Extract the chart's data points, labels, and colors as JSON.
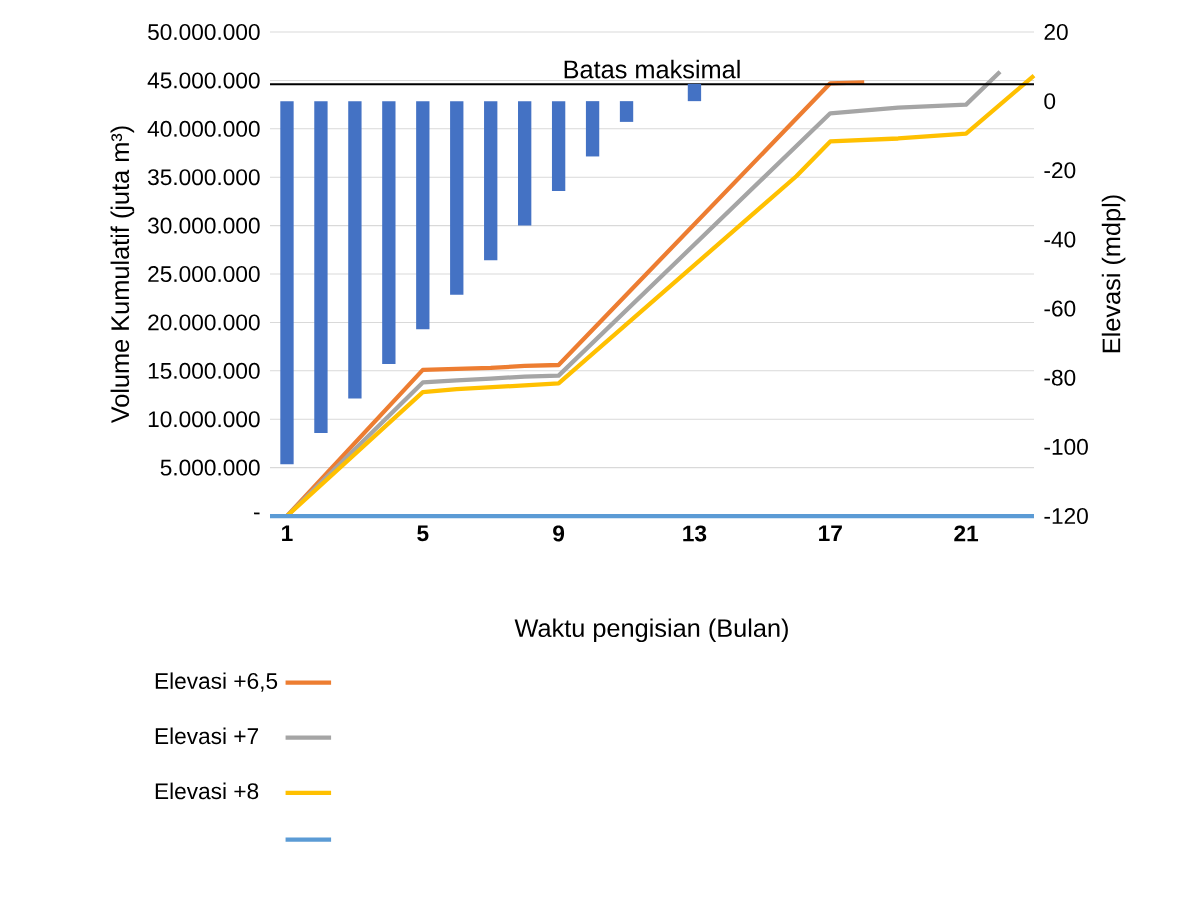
{
  "chart_data": {
    "type": "line",
    "xlabel": "Waktu pengisian (Bulan)",
    "ylabel": "Volume Kumulatif (juta m³)",
    "y2label": "Elevasi (mdpl)",
    "xlim": [
      0.5,
      23
    ],
    "xticks": [
      1,
      5,
      9,
      13,
      17,
      21
    ],
    "ylim": [
      0,
      50000000
    ],
    "yticks": [
      {
        "value": 0,
        "label": "-"
      },
      {
        "value": 5000000,
        "label": "5.000.000"
      },
      {
        "value": 10000000,
        "label": "10.000.000"
      },
      {
        "value": 15000000,
        "label": "15.000.000"
      },
      {
        "value": 20000000,
        "label": "20.000.000"
      },
      {
        "value": 25000000,
        "label": "25.000.000"
      },
      {
        "value": 30000000,
        "label": "30.000.000"
      },
      {
        "value": 35000000,
        "label": "35.000.000"
      },
      {
        "value": 40000000,
        "label": "40.000.000"
      },
      {
        "value": 45000000,
        "label": "45.000.000"
      },
      {
        "value": 50000000,
        "label": "50.000.000"
      }
    ],
    "y2lim": [
      -120,
      20
    ],
    "y2ticks": [
      20,
      0,
      -20,
      -40,
      -60,
      -80,
      -100,
      -120
    ],
    "grid": "y",
    "legend": "bottom",
    "ref_lines": [
      {
        "axis": "y",
        "value": 44600000,
        "label": "Batas maksimal",
        "color": "#000000"
      }
    ],
    "series": [
      {
        "type": "bar",
        "axis": "y2",
        "color": "#4472c4",
        "x": [
          1,
          2,
          3,
          4,
          5,
          6,
          7,
          8,
          9,
          10,
          11,
          12,
          13
        ],
        "values": [
          -105,
          -96,
          -86,
          -76,
          -66,
          -56,
          -46,
          -36,
          -26,
          -16,
          -6,
          null,
          5
        ]
      },
      {
        "name": "Elevasi +6,5",
        "color": "#ed7d31",
        "x": [
          1,
          5,
          6,
          7,
          8,
          9,
          17,
          18
        ],
        "values": [
          0,
          15100000,
          15200000,
          15300000,
          15500000,
          15600000,
          44700000,
          44800000
        ]
      },
      {
        "name": "Elevasi +7",
        "color": "#a5a5a5",
        "x": [
          1,
          5,
          6,
          7,
          8,
          9,
          17,
          19,
          21,
          22
        ],
        "values": [
          0,
          13800000,
          14000000,
          14200000,
          14400000,
          14500000,
          41600000,
          42200000,
          42500000,
          45900000
        ]
      },
      {
        "name": "Elevasi +8",
        "color": "#ffc000",
        "x": [
          1,
          5,
          6,
          7,
          8,
          9,
          16,
          17,
          19,
          21,
          23
        ],
        "values": [
          0,
          12800000,
          13100000,
          13300000,
          13500000,
          13700000,
          35100000,
          38700000,
          39000000,
          39500000,
          45500000
        ]
      },
      {
        "color": "#5b9bd5",
        "x": [
          0.5,
          23
        ],
        "values": [
          0,
          0
        ]
      }
    ]
  }
}
